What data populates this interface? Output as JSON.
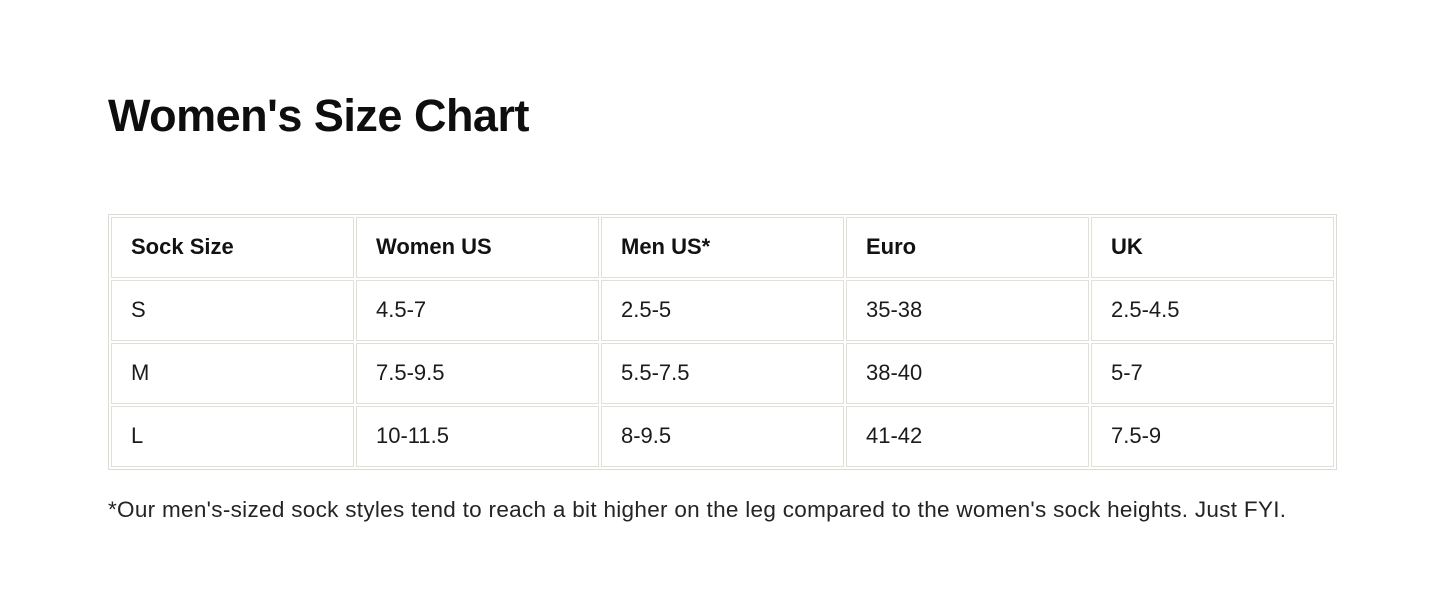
{
  "page": {
    "background_color": "#ffffff",
    "text_color": "#1b1b1b",
    "table_border_color": "#e2dfd9"
  },
  "title": "Women's Size Chart",
  "table": {
    "headers": [
      "Sock Size",
      "Women US",
      "Men US*",
      "Euro",
      "UK"
    ],
    "rows": [
      [
        "S",
        "4.5-7",
        "2.5-5",
        "35-38",
        "2.5-4.5"
      ],
      [
        "M",
        "7.5-9.5",
        "5.5-7.5",
        "38-40",
        "5-7"
      ],
      [
        "L",
        "10-11.5",
        "8-9.5",
        "41-42",
        "7.5-9"
      ]
    ]
  },
  "footnote": "*Our men's-sized sock styles tend to reach a bit higher on the leg compared to the women's sock heights. Just FYI."
}
